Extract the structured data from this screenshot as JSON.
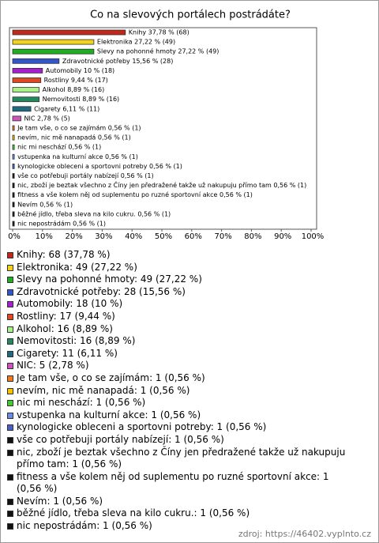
{
  "chart_data": {
    "type": "hbar",
    "title": "Co na slevových portálech postrádáte?",
    "values": [
      37.78,
      27.22,
      27.22,
      15.56,
      10,
      9.44,
      8.89,
      8.89,
      6.11,
      2.78,
      0.56,
      0.56,
      0.56,
      0.56,
      0.56,
      0.56,
      0.56,
      0.56,
      0.56,
      0.56,
      0.56
    ],
    "value_labels": [
      "Knihy 37,78 % (68)",
      "Elektronika 27,22 % (49)",
      "Slevy na pohonné hmoty 27,22 % (49)",
      "Zdravotnické potřeby 15,56 % (28)",
      "Automobily 10 % (18)",
      "Rostliny 9,44 % (17)",
      "Alkohol 8,89 % (16)",
      "Nemovitosti 8,89 % (16)",
      "Cigarety 6,11 % (11)",
      "NIC 2,78 % (5)",
      "Je tam vše, o co se zajímám 0,56 % (1)",
      "nevím, nic mě nanapadá 0,56 % (1)",
      "nic mi neschází 0,56 % (1)",
      "vstupenka na kulturní akce 0,56 % (1)",
      "kynologicke obleceni a sportovni potreby 0,56 % (1)",
      "vše co potřebuji portály nabízejí 0,56 % (1)",
      "nic, zboží je beztak všechno z Číny jen předražené takže už nakupuju přímo tam 0,56 % (1)",
      "fitness a vše kolem něj od suplementu po ruzné sportovní akce 0,56 % (1)",
      "Nevím 0,56 % (1)",
      "běžné jídlo, třeba sleva na kilo cukru. 0,56 % (1)",
      "nic nepostrádám 0,56 % (1)"
    ],
    "legend": [
      "Knihy: 68 (37,78 %)",
      "Elektronika: 49 (27,22 %)",
      "Slevy na pohonné hmoty: 49 (27,22 %)",
      "Zdravotnické potřeby: 28 (15,56 %)",
      "Automobily: 18 (10 %)",
      "Rostliny: 17 (9,44 %)",
      "Alkohol: 16 (8,89 %)",
      "Nemovitosti: 16 (8,89 %)",
      "Cigarety: 11 (6,11 %)",
      "NIC: 5 (2,78 %)",
      "Je tam vše, o co se zajímám: 1 (0,56 %)",
      "nevím, nic mě nanapadá: 1 (0,56 %)",
      "nic mi neschází: 1 (0,56 %)",
      "vstupenka na kulturní akce: 1 (0,56 %)",
      "kynologicke obleceni a sportovni potreby: 1 (0,56 %)",
      "vše co potřebuji portály nabízejí: 1 (0,56 %)",
      "nic, zboží je beztak všechno z Číny jen předražené takže už nakupuju přímo tam: 1 (0,56 %)",
      "fitness a vše kolem něj od suplementu po ruzné sportovní akce: 1 (0,56 %)",
      "Nevím: 1 (0,56 %)",
      "běžné jídlo, třeba sleva na kilo cukru.: 1 (0,56 %)",
      "nic nepostrádám: 1 (0,56 %)"
    ],
    "colors": [
      "#c0281c",
      "#f2d21c",
      "#1fae1f",
      "#3355cc",
      "#a61fcf",
      "#e0491f",
      "#aaf088",
      "#238a5e",
      "#1f6a80",
      "#cc55bb",
      "#ee7a1f",
      "#f5c400",
      "#3fce2f",
      "#6b8be8",
      "#4a5fc6",
      "#111111",
      "#111111",
      "#111111",
      "#111111",
      "#111111",
      "#111111"
    ],
    "xlim": [
      0,
      100
    ],
    "xticks": [
      {
        "value": 0,
        "label": "0%"
      },
      {
        "value": 10,
        "label": "10%"
      },
      {
        "value": 20,
        "label": "20%"
      },
      {
        "value": 30,
        "label": "30%"
      },
      {
        "value": 40,
        "label": "40%"
      },
      {
        "value": 50,
        "label": "50%"
      },
      {
        "value": 60,
        "label": "60%"
      },
      {
        "value": 70,
        "label": "70%"
      },
      {
        "value": 80,
        "label": "80%"
      },
      {
        "value": 90,
        "label": "90%"
      },
      {
        "value": 100,
        "label": "100%"
      }
    ],
    "grid": false,
    "source": "zdroj: https://46402.vyplnto.cz"
  }
}
